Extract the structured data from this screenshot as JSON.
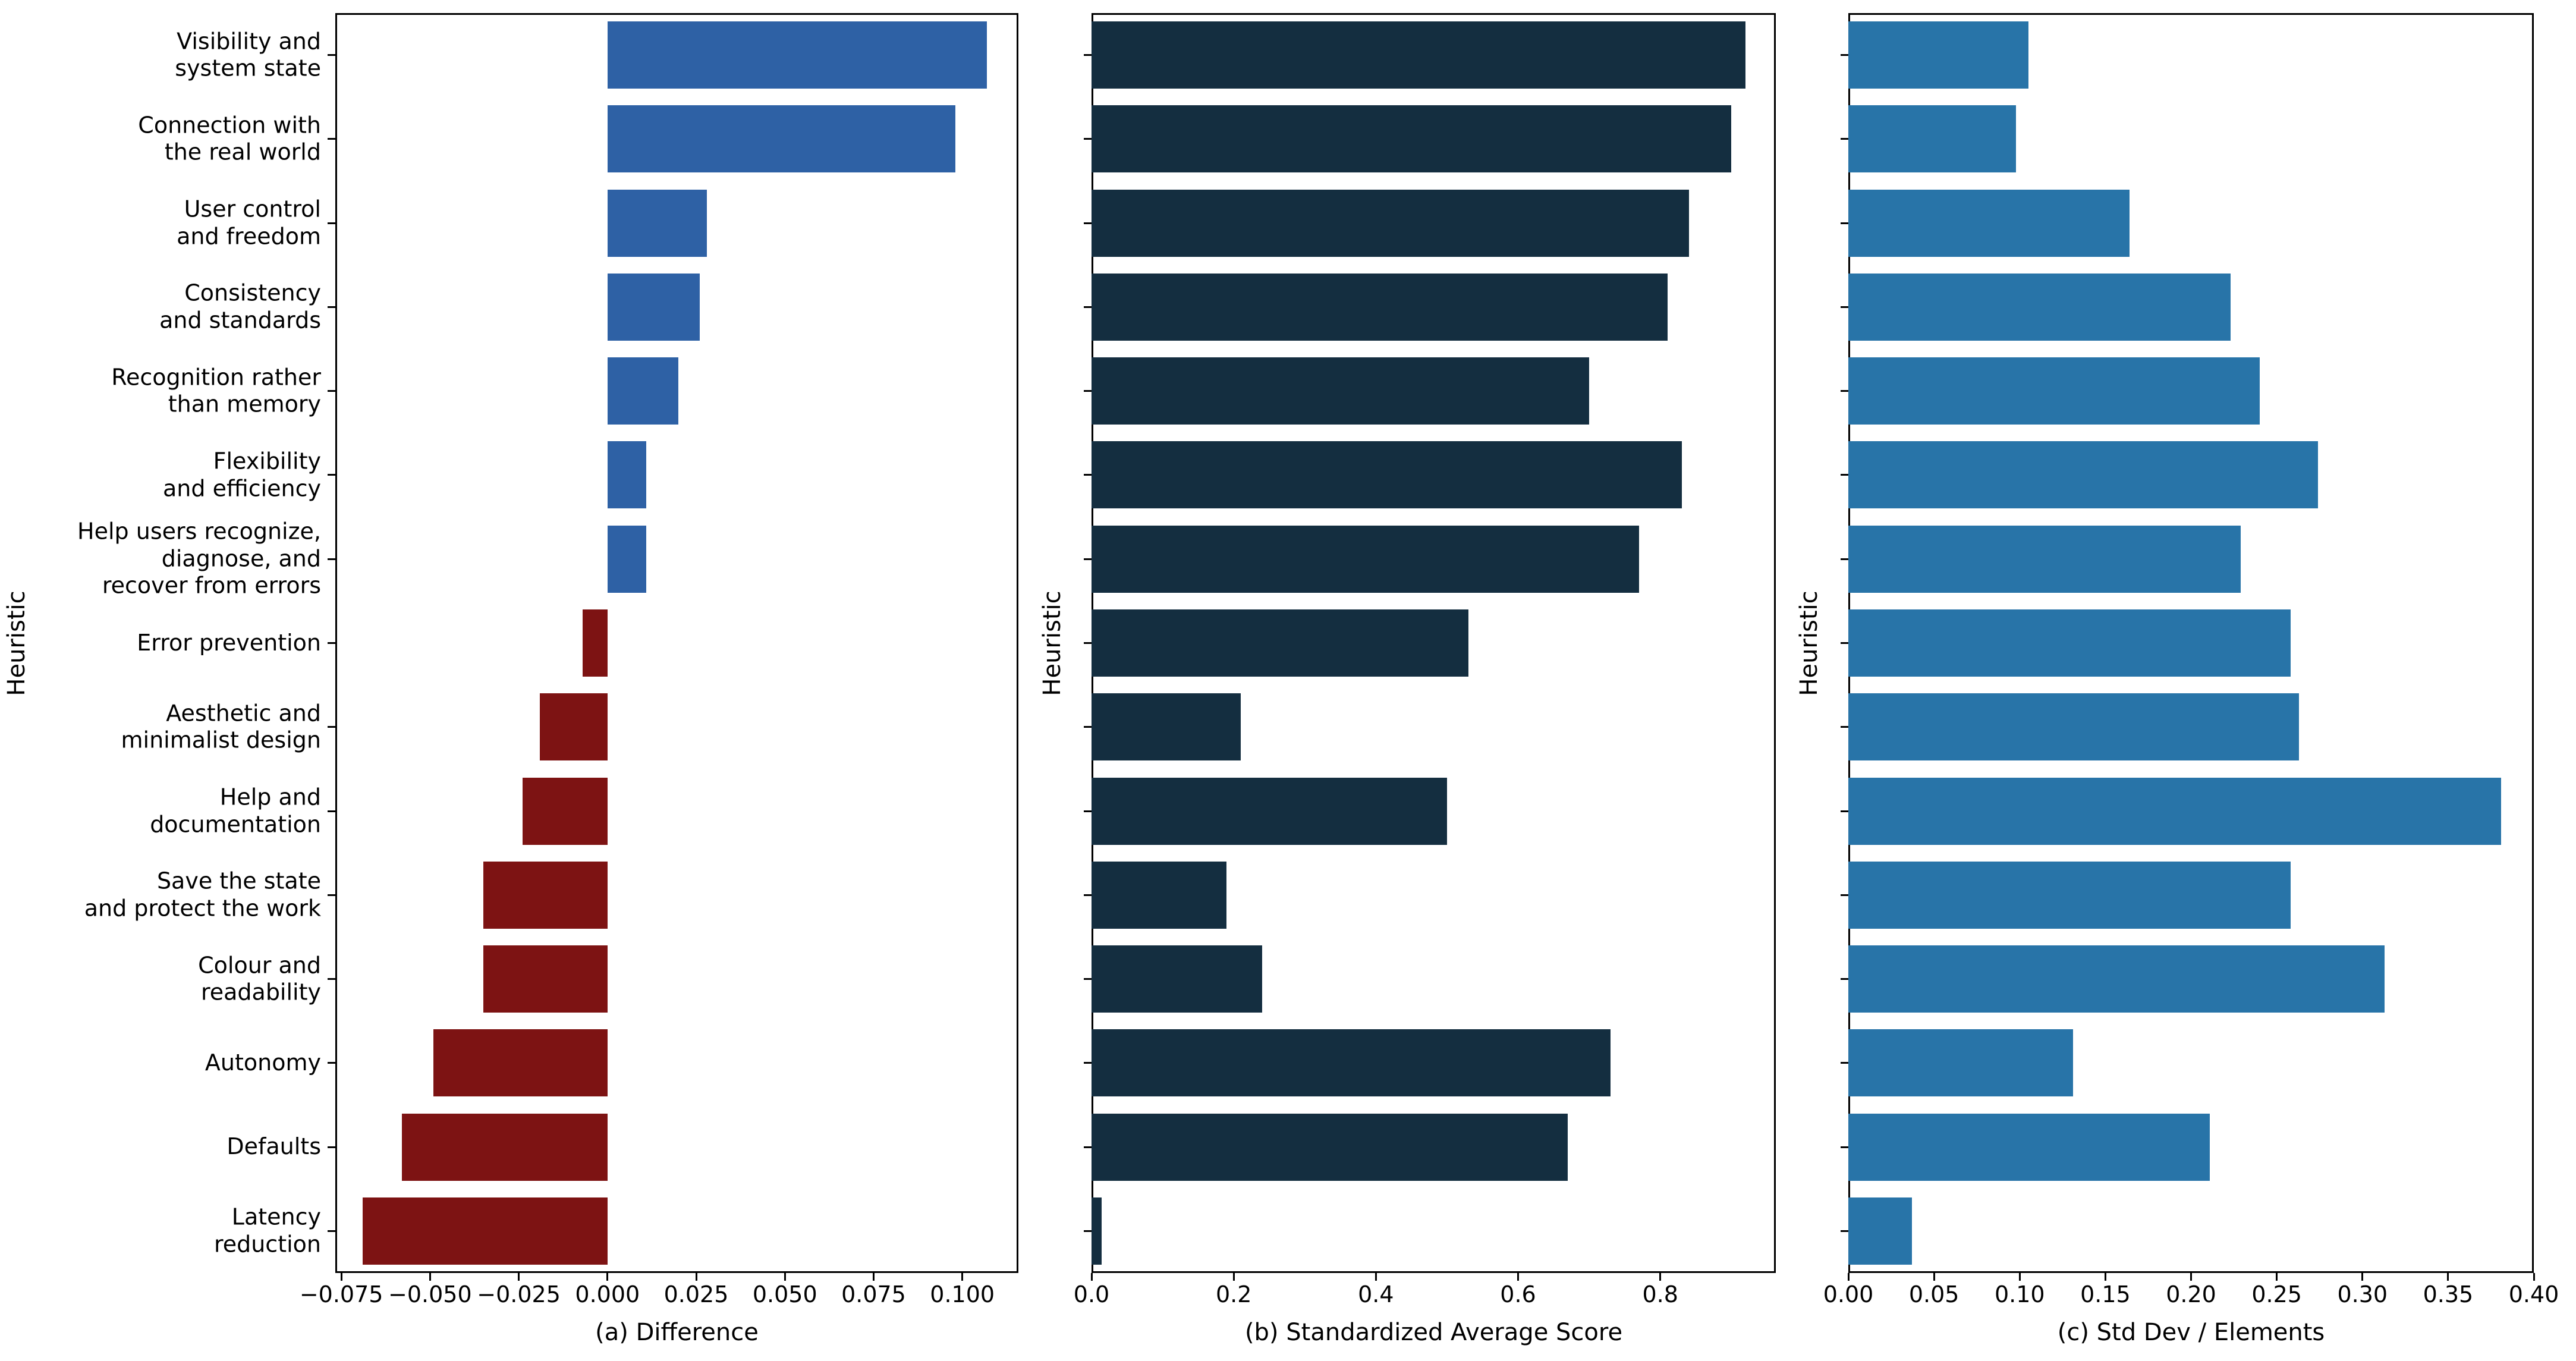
{
  "figure": {
    "background": "#ffffff",
    "text_color": "#000000"
  },
  "heuristics": [
    "Visibility and\nsystem state",
    "Connection with\nthe real world",
    "User control\nand freedom",
    "Consistency\nand standards",
    "Recognition rather\nthan memory",
    "Flexibility\nand efficiency",
    "Help users recognize,\ndiagnose, and\nrecover from errors",
    "Error prevention",
    "Aesthetic and\nminimalist design",
    "Help and\ndocumentation",
    "Save the state\nand protect the work",
    "Colour and\nreadability",
    "Autonomy",
    "Defaults",
    "Latency\nreduction"
  ],
  "chart_data": [
    {
      "id": "a",
      "type": "bar",
      "orientation": "horizontal",
      "xlabel": "(a) Difference",
      "ylabel": "Heuristic",
      "categories_ref": "heuristics",
      "values": [
        0.107,
        0.098,
        0.028,
        0.026,
        0.02,
        0.011,
        0.011,
        -0.007,
        -0.019,
        -0.024,
        -0.035,
        -0.035,
        -0.049,
        -0.058,
        -0.069
      ],
      "xlim": [
        -0.0767,
        0.1158
      ],
      "xticks": [
        -0.075,
        -0.05,
        -0.025,
        0,
        0.025,
        0.05,
        0.075,
        0.1
      ],
      "xtick_labels": [
        "−0.075",
        "−0.050",
        "−0.025",
        "0.000",
        "0.025",
        "0.050",
        "0.075",
        "0.100"
      ],
      "color_positive": "#2e61a5",
      "color_negative": "#7d1313",
      "show_category_labels": true,
      "grid": false,
      "legend": false
    },
    {
      "id": "b",
      "type": "bar",
      "orientation": "horizontal",
      "xlabel": "(b) Standardized Average Score",
      "ylabel": "Heuristic",
      "categories_ref": "heuristics",
      "values": [
        0.92,
        0.9,
        0.84,
        0.81,
        0.7,
        0.83,
        0.77,
        0.53,
        0.21,
        0.5,
        0.19,
        0.24,
        0.73,
        0.67,
        0.014
      ],
      "xlim": [
        0,
        0.9625
      ],
      "xticks": [
        0,
        0.2,
        0.4,
        0.6,
        0.8
      ],
      "xtick_labels": [
        "0.0",
        "0.2",
        "0.4",
        "0.6",
        "0.8"
      ],
      "color_positive": "#142e40",
      "color_negative": "#142e40",
      "show_category_labels": false,
      "grid": false,
      "legend": false
    },
    {
      "id": "c",
      "type": "bar",
      "orientation": "horizontal",
      "xlabel": "(c) Std Dev / Elements",
      "ylabel": "Heuristic",
      "categories_ref": "heuristics",
      "values": [
        0.105,
        0.098,
        0.164,
        0.223,
        0.24,
        0.274,
        0.229,
        0.258,
        0.263,
        0.381,
        0.258,
        0.313,
        0.131,
        0.211,
        0.037
      ],
      "xlim": [
        0,
        0.4
      ],
      "xticks": [
        0,
        0.05,
        0.1,
        0.15,
        0.2,
        0.25,
        0.3,
        0.35,
        0.4
      ],
      "xtick_labels": [
        "0.00",
        "0.05",
        "0.10",
        "0.15",
        "0.20",
        "0.25",
        "0.30",
        "0.35",
        "0.40"
      ],
      "color_positive": "#2874a8",
      "color_negative": "#2874a8",
      "show_category_labels": false,
      "grid": false,
      "legend": false
    }
  ]
}
